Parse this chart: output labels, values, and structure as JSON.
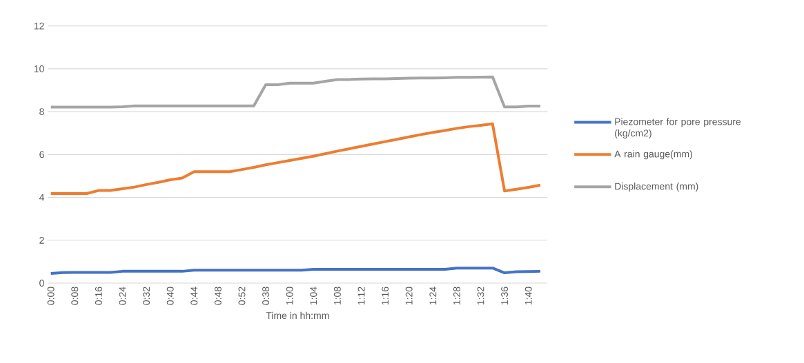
{
  "chart_data": {
    "type": "line",
    "xlabel": "Time in hh:mm",
    "categories": [
      "0:00",
      null,
      "0:08",
      null,
      "0:16",
      null,
      "0:24",
      null,
      "0:32",
      null,
      "0:40",
      null,
      "0:44",
      null,
      "0:48",
      null,
      "0:52",
      null,
      "0:38",
      null,
      "1:00",
      null,
      "1:04",
      null,
      "1:08",
      null,
      "1:12",
      null,
      "1:16",
      null,
      "1:20",
      null,
      "1:24",
      null,
      "1:28",
      null,
      "1:32",
      null,
      "1:36",
      null,
      "1:40",
      null
    ],
    "series": [
      {
        "name": "Piezometer for pore pressure (kg/cm2)",
        "color": "#4472c4",
        "values": [
          0.45,
          0.49,
          0.5,
          0.5,
          0.5,
          0.5,
          0.55,
          0.55,
          0.55,
          0.55,
          0.55,
          0.55,
          0.6,
          0.6,
          0.6,
          0.6,
          0.6,
          0.6,
          0.6,
          0.6,
          0.6,
          0.6,
          0.64,
          0.64,
          0.64,
          0.64,
          0.64,
          0.64,
          0.64,
          0.64,
          0.64,
          0.64,
          0.64,
          0.64,
          0.7,
          0.7,
          0.7,
          0.7,
          0.48,
          0.53,
          0.54,
          0.55
        ]
      },
      {
        "name": "A rain gauge(mm)",
        "color": "#ed7d31",
        "values": [
          4.18,
          4.18,
          4.18,
          4.18,
          4.32,
          4.32,
          4.4,
          4.48,
          4.6,
          4.7,
          4.82,
          4.9,
          5.2,
          5.2,
          5.2,
          5.2,
          5.3,
          5.4,
          5.52,
          5.62,
          5.72,
          5.82,
          5.92,
          6.04,
          6.16,
          6.27,
          6.38,
          6.49,
          6.6,
          6.71,
          6.82,
          6.93,
          7.03,
          7.12,
          7.22,
          7.3,
          7.36,
          7.43,
          4.3,
          4.38,
          4.47,
          4.57
        ]
      },
      {
        "name": "Displacement  (mm)",
        "color": "#a5a5a5",
        "values": [
          8.21,
          8.21,
          8.21,
          8.21,
          8.21,
          8.21,
          8.23,
          8.27,
          8.27,
          8.27,
          8.27,
          8.27,
          8.27,
          8.27,
          8.27,
          8.27,
          8.27,
          8.27,
          9.26,
          9.26,
          9.33,
          9.33,
          9.33,
          9.42,
          9.5,
          9.5,
          9.52,
          9.53,
          9.53,
          9.55,
          9.56,
          9.57,
          9.57,
          9.58,
          9.6,
          9.6,
          9.61,
          9.62,
          8.22,
          8.22,
          8.26,
          8.26
        ]
      }
    ],
    "ylim": [
      0,
      12
    ],
    "yticks": [
      0,
      2,
      4,
      6,
      8,
      10,
      12
    ],
    "grid": "y",
    "legend": "right",
    "marker": "none",
    "line_style": "solid"
  }
}
